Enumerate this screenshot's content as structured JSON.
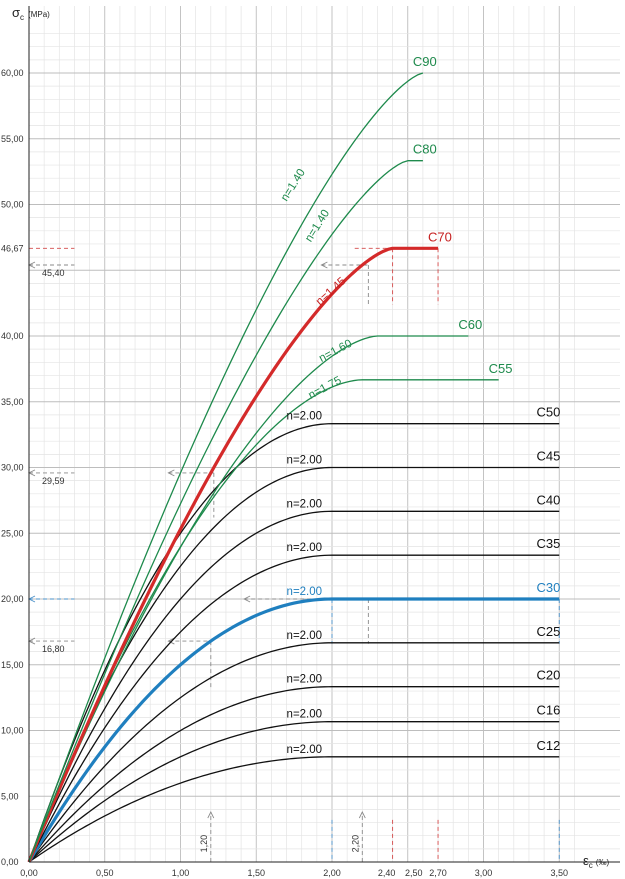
{
  "chart_data": {
    "type": "line",
    "ylabel": {
      "symbol": "σ",
      "subscript": "c",
      "unit": "(MPa)"
    },
    "xlabel": {
      "symbol": "ε",
      "subscript": "c",
      "unit": "(‰)"
    },
    "xlim": [
      0,
      3.6
    ],
    "ylim": [
      0,
      63
    ],
    "grid": true,
    "x_ticks": [
      {
        "value": 0,
        "label": "0,00",
        "color": "#333333"
      },
      {
        "value": 0.5,
        "label": "0,50",
        "color": "#333333"
      },
      {
        "value": 1.0,
        "label": "1,00",
        "color": "#333333"
      },
      {
        "value": 1.5,
        "label": "1,50",
        "color": "#333333"
      },
      {
        "value": 2.0,
        "label": "2,00",
        "color": "#1f7fbf"
      },
      {
        "value": 2.4,
        "label": "2,40",
        "color": "#c0392b"
      },
      {
        "value": 2.5,
        "label": "2,50",
        "color": "#333333"
      },
      {
        "value": 2.7,
        "label": "2,70",
        "color": "#c0392b"
      },
      {
        "value": 3.0,
        "label": "3,00",
        "color": "#333333"
      },
      {
        "value": 3.5,
        "label": "3,50",
        "color": "#1f7fbf"
      }
    ],
    "y_ticks": [
      {
        "value": 0,
        "label": "0,00",
        "color": "#333333"
      },
      {
        "value": 5,
        "label": "5,00",
        "color": "#333333"
      },
      {
        "value": 10,
        "label": "10,00",
        "color": "#333333"
      },
      {
        "value": 15,
        "label": "15,00",
        "color": "#333333"
      },
      {
        "value": 20,
        "label": "20,00",
        "color": "#1f7fbf"
      },
      {
        "value": 25,
        "label": "25,00",
        "color": "#333333"
      },
      {
        "value": 30,
        "label": "30,00",
        "color": "#333333"
      },
      {
        "value": 35,
        "label": "35,00",
        "color": "#333333"
      },
      {
        "value": 40,
        "label": "40,00",
        "color": "#333333"
      },
      {
        "value": 46.67,
        "label": "46,67",
        "color": "#c0392b"
      },
      {
        "value": 50,
        "label": "50,00",
        "color": "#333333"
      },
      {
        "value": 55,
        "label": "55,00",
        "color": "#333333"
      },
      {
        "value": 60,
        "label": "60,00",
        "color": "#333333"
      }
    ],
    "series": [
      {
        "name": "C12",
        "fc": 8,
        "n": 2.0,
        "n_label": "n=2.00",
        "eps_c2": 2.0,
        "eps_cu2": 3.5,
        "color": "#111111",
        "width": 1.3
      },
      {
        "name": "C16",
        "fc": 10.67,
        "n": 2.0,
        "n_label": "n=2.00",
        "eps_c2": 2.0,
        "eps_cu2": 3.5,
        "color": "#111111",
        "width": 1.3
      },
      {
        "name": "C20",
        "fc": 13.33,
        "n": 2.0,
        "n_label": "n=2.00",
        "eps_c2": 2.0,
        "eps_cu2": 3.5,
        "color": "#111111",
        "width": 1.3
      },
      {
        "name": "C25",
        "fc": 16.67,
        "n": 2.0,
        "n_label": "n=2.00",
        "eps_c2": 2.0,
        "eps_cu2": 3.5,
        "color": "#111111",
        "width": 1.3
      },
      {
        "name": "C30",
        "fc": 20.0,
        "n": 2.0,
        "n_label": "n=2.00",
        "eps_c2": 2.0,
        "eps_cu2": 3.5,
        "color": "#1f7fbf",
        "width": 3.2
      },
      {
        "name": "C35",
        "fc": 23.33,
        "n": 2.0,
        "n_label": "n=2.00",
        "eps_c2": 2.0,
        "eps_cu2": 3.5,
        "color": "#111111",
        "width": 1.3
      },
      {
        "name": "C40",
        "fc": 26.67,
        "n": 2.0,
        "n_label": "n=2.00",
        "eps_c2": 2.0,
        "eps_cu2": 3.5,
        "color": "#111111",
        "width": 1.3
      },
      {
        "name": "C45",
        "fc": 30.0,
        "n": 2.0,
        "n_label": "n=2.00",
        "eps_c2": 2.0,
        "eps_cu2": 3.5,
        "color": "#111111",
        "width": 1.3
      },
      {
        "name": "C50",
        "fc": 33.33,
        "n": 2.0,
        "n_label": "n=2.00",
        "eps_c2": 2.0,
        "eps_cu2": 3.5,
        "color": "#111111",
        "width": 1.3
      },
      {
        "name": "C55",
        "fc": 36.67,
        "n": 1.75,
        "n_label": "n=1.75",
        "eps_c2": 2.2,
        "eps_cu2": 3.1,
        "color": "#1e8a4c",
        "width": 1.3
      },
      {
        "name": "C60",
        "fc": 40.0,
        "n": 1.6,
        "n_label": "n=1.60",
        "eps_c2": 2.3,
        "eps_cu2": 2.9,
        "color": "#1e8a4c",
        "width": 1.3
      },
      {
        "name": "C70",
        "fc": 46.67,
        "n": 1.45,
        "n_label": "n=1.45",
        "eps_c2": 2.4,
        "eps_cu2": 2.7,
        "color": "#d42a2a",
        "width": 3.2
      },
      {
        "name": "C80",
        "fc": 53.33,
        "n": 1.4,
        "n_label": "n=1.40",
        "eps_c2": 2.5,
        "eps_cu2": 2.6,
        "color": "#1e8a4c",
        "width": 1.3
      },
      {
        "name": "C90",
        "fc": 60.0,
        "n": 1.4,
        "n_label": "n=1.40",
        "eps_c2": 2.6,
        "eps_cu2": 2.6,
        "color": "#1e8a4c",
        "width": 1.3
      }
    ],
    "annotations": [
      {
        "label": "45,40",
        "y_value": 45.4,
        "color": "#555555"
      },
      {
        "label": "29,59",
        "y_value": 29.59,
        "color": "#555555"
      },
      {
        "label": "16,80",
        "y_value": 16.8,
        "color": "#555555"
      },
      {
        "label": "1,20",
        "x_value": 1.2,
        "color": "#555555"
      },
      {
        "label": "2,20",
        "x_value": 2.2,
        "color": "#555555"
      }
    ]
  }
}
